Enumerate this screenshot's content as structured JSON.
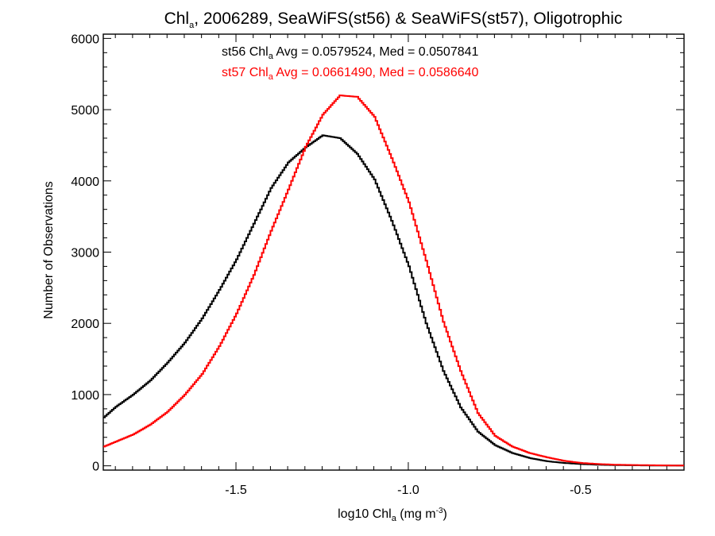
{
  "chart_data": {
    "type": "line",
    "step": true,
    "title": {
      "prefix": "Chl",
      "sub": "a",
      "rest": ", 2006289, SeaWiFS(st56) & SeaWiFS(st57), Oligotrophic"
    },
    "xlabel": {
      "prefix": "log10 Chl",
      "sub": "a",
      "middle": " (mg m",
      "sup": "-3",
      "suffix": ")"
    },
    "ylabel": "Number of Observations",
    "xlim": [
      -1.885,
      -0.2
    ],
    "ylim": [
      -60,
      6060
    ],
    "x_ticks": [
      -1.5,
      -1.0,
      -0.5
    ],
    "x_tick_labels": [
      "-1.5",
      "-1.0",
      "-0.5"
    ],
    "y_ticks": [
      0,
      1000,
      2000,
      3000,
      4000,
      5000,
      6000
    ],
    "y_tick_labels": [
      "0",
      "1000",
      "2000",
      "3000",
      "4000",
      "5000",
      "6000"
    ],
    "grid": false,
    "annotations": [
      {
        "series": "st56",
        "prefix": "st56 Chl",
        "sub": "a",
        "rest": " Avg = 0.0579524, Med = 0.0507841",
        "color": "#000000"
      },
      {
        "series": "st57",
        "prefix": "st57 Chl",
        "sub": "a",
        "rest": " Avg = 0.0661490, Med = 0.0586640",
        "color": "#ff0000"
      }
    ],
    "series": [
      {
        "key": "st56",
        "color": "#000000",
        "x": [
          -1.885,
          -1.85,
          -1.8,
          -1.75,
          -1.7,
          -1.65,
          -1.6,
          -1.55,
          -1.5,
          -1.45,
          -1.4,
          -1.35,
          -1.3,
          -1.25,
          -1.2,
          -1.15,
          -1.1,
          -1.05,
          -1.0,
          -0.95,
          -0.9,
          -0.85,
          -0.8,
          -0.75,
          -0.7,
          -0.65,
          -0.6,
          -0.55,
          -0.5,
          -0.45,
          -0.4,
          -0.3,
          -0.2
        ],
        "y": [
          680,
          830,
          1000,
          1200,
          1450,
          1730,
          2070,
          2470,
          2900,
          3400,
          3900,
          4260,
          4470,
          4640,
          4600,
          4380,
          4020,
          3440,
          2800,
          2000,
          1330,
          820,
          480,
          290,
          180,
          110,
          65,
          40,
          25,
          15,
          10,
          5,
          3
        ]
      },
      {
        "key": "st57",
        "color": "#ff0000",
        "x": [
          -1.885,
          -1.85,
          -1.8,
          -1.75,
          -1.7,
          -1.65,
          -1.6,
          -1.55,
          -1.5,
          -1.45,
          -1.4,
          -1.35,
          -1.3,
          -1.25,
          -1.2,
          -1.15,
          -1.1,
          -1.05,
          -1.0,
          -0.95,
          -0.9,
          -0.85,
          -0.8,
          -0.75,
          -0.7,
          -0.65,
          -0.6,
          -0.55,
          -0.5,
          -0.45,
          -0.4,
          -0.3,
          -0.2
        ],
        "y": [
          270,
          340,
          440,
          580,
          760,
          1000,
          1290,
          1680,
          2140,
          2680,
          3300,
          3880,
          4480,
          4930,
          5200,
          5180,
          4900,
          4320,
          3700,
          2880,
          2020,
          1330,
          740,
          420,
          270,
          180,
          120,
          70,
          40,
          25,
          15,
          8,
          3
        ]
      }
    ]
  }
}
